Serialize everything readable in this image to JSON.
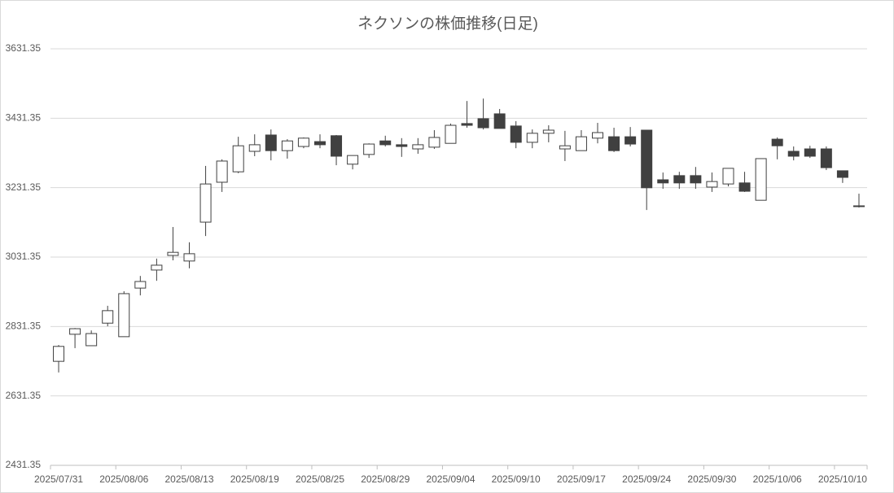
{
  "chart_data": {
    "type": "candlestick",
    "title": "ネクソンの株価推移(日足)",
    "categories": [
      "2025/07/31",
      null,
      null,
      null,
      "2025/08/06",
      null,
      null,
      null,
      "2025/08/13",
      null,
      null,
      null,
      "2025/08/19",
      null,
      null,
      null,
      "2025/08/25",
      null,
      null,
      null,
      "2025/08/29",
      null,
      null,
      null,
      "2025/09/04",
      null,
      null,
      null,
      "2025/09/10",
      null,
      null,
      null,
      "2025/09/17",
      null,
      null,
      null,
      "2025/09/24",
      null,
      null,
      null,
      "2025/09/30",
      null,
      null,
      null,
      "2025/10/06",
      null,
      null,
      null,
      "2025/10/10",
      null
    ],
    "open": [
      2731,
      2809,
      2776,
      2841,
      2802,
      2942,
      2994,
      3036,
      3020,
      3132,
      3247,
      3277,
      3336,
      3383,
      3338,
      3350,
      3364,
      3381,
      3299,
      3327,
      3366,
      3355,
      3343,
      3348,
      3359,
      3416,
      3430,
      3444,
      3409,
      3362,
      3388,
      3343,
      3338,
      3374,
      3378,
      3378,
      3397,
      3254,
      3266,
      3266,
      3233,
      3242,
      3245,
      3195,
      3371,
      3336,
      3343,
      3343,
      3280,
      3179
    ],
    "high": [
      2778,
      2827,
      2820,
      2891,
      2933,
      2977,
      3027,
      3118,
      3074,
      3294,
      3313,
      3378,
      3385,
      3399,
      3371,
      3376,
      3385,
      3383,
      3324,
      3359,
      3381,
      3374,
      3374,
      3397,
      3416,
      3481,
      3488,
      3458,
      3423,
      3399,
      3411,
      3395,
      3397,
      3418,
      3404,
      3406,
      3397,
      3275,
      3277,
      3291,
      3275,
      3287,
      3277,
      3315,
      3376,
      3350,
      3352,
      3350,
      3280,
      3214
    ],
    "low": [
      2699,
      2769,
      2776,
      2832,
      2802,
      2921,
      2963,
      3022,
      2999,
      3092,
      3219,
      3273,
      3322,
      3310,
      3315,
      3345,
      3345,
      3296,
      3284,
      3317,
      3350,
      3320,
      3329,
      3343,
      3359,
      3404,
      3399,
      3402,
      3345,
      3345,
      3362,
      3308,
      3338,
      3359,
      3334,
      3350,
      3167,
      3228,
      3228,
      3228,
      3219,
      3235,
      3219,
      3195,
      3313,
      3310,
      3317,
      3282,
      3245,
      3174
    ],
    "close": [
      2774,
      2825,
      2811,
      2877,
      2926,
      2961,
      3008,
      3045,
      3041,
      3242,
      3308,
      3352,
      3355,
      3338,
      3366,
      3374,
      3355,
      3322,
      3324,
      3357,
      3355,
      3350,
      3355,
      3376,
      3411,
      3411,
      3404,
      3402,
      3362,
      3388,
      3397,
      3352,
      3378,
      3390,
      3338,
      3357,
      3231,
      3245,
      3245,
      3245,
      3249,
      3287,
      3221,
      3315,
      3352,
      3322,
      3322,
      3289,
      3261,
      3177
    ],
    "up_color": "#ffffff",
    "down_color": "#404040",
    "line_color": "#404040",
    "ylim": [
      2431.35,
      3631.35
    ],
    "yticks": [
      2431.35,
      2631.35,
      2831.35,
      3031.35,
      3231.35,
      3431.35,
      3631.35
    ],
    "grid": true
  }
}
